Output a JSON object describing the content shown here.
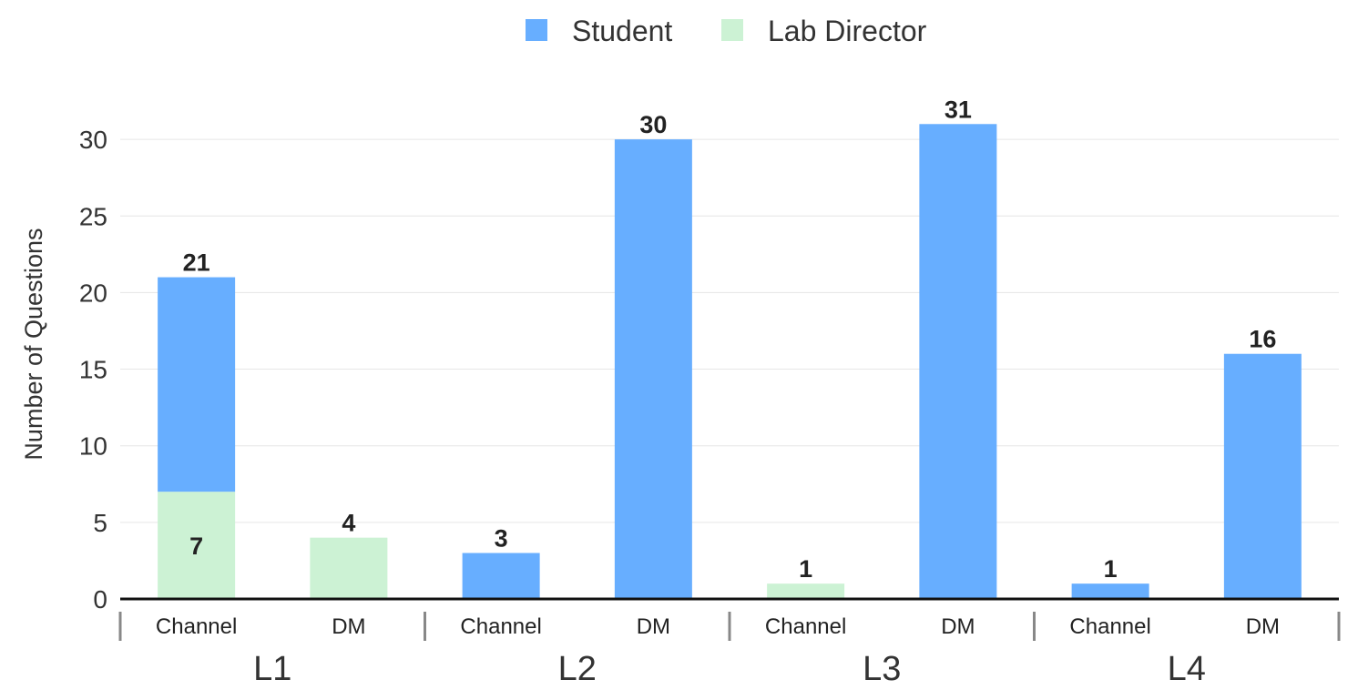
{
  "chart_data": {
    "type": "bar",
    "stacked": true,
    "ylabel": "Number of Questions",
    "ylim": [
      0,
      32
    ],
    "yticks": [
      "0",
      "5",
      "10",
      "15",
      "20",
      "25",
      "30"
    ],
    "grid": true,
    "legend_position": "top-center",
    "groups": [
      "L1",
      "L2",
      "L3",
      "L4"
    ],
    "categories": [
      {
        "group": "L1",
        "label": "Channel"
      },
      {
        "group": "L1",
        "label": "DM"
      },
      {
        "group": "L2",
        "label": "Channel"
      },
      {
        "group": "L2",
        "label": "DM"
      },
      {
        "group": "L3",
        "label": "Channel"
      },
      {
        "group": "L3",
        "label": "DM"
      },
      {
        "group": "L4",
        "label": "Channel"
      },
      {
        "group": "L4",
        "label": "DM"
      }
    ],
    "series": [
      {
        "name": "Lab Director",
        "color": "#ccf2d4",
        "values": [
          7,
          4,
          0,
          0,
          1,
          0,
          0,
          0
        ]
      },
      {
        "name": "Student",
        "color": "#67aeff",
        "values": [
          14,
          0,
          3,
          30,
          0,
          31,
          1,
          16
        ]
      }
    ],
    "legend_order": [
      "Student",
      "Lab Director"
    ],
    "segment_labels": [
      {
        "category_index": 0,
        "series": "Lab Director",
        "text": "7"
      }
    ],
    "total_labels": [
      "21",
      "4",
      "3",
      "30",
      "1",
      "31",
      "1",
      "16"
    ]
  }
}
